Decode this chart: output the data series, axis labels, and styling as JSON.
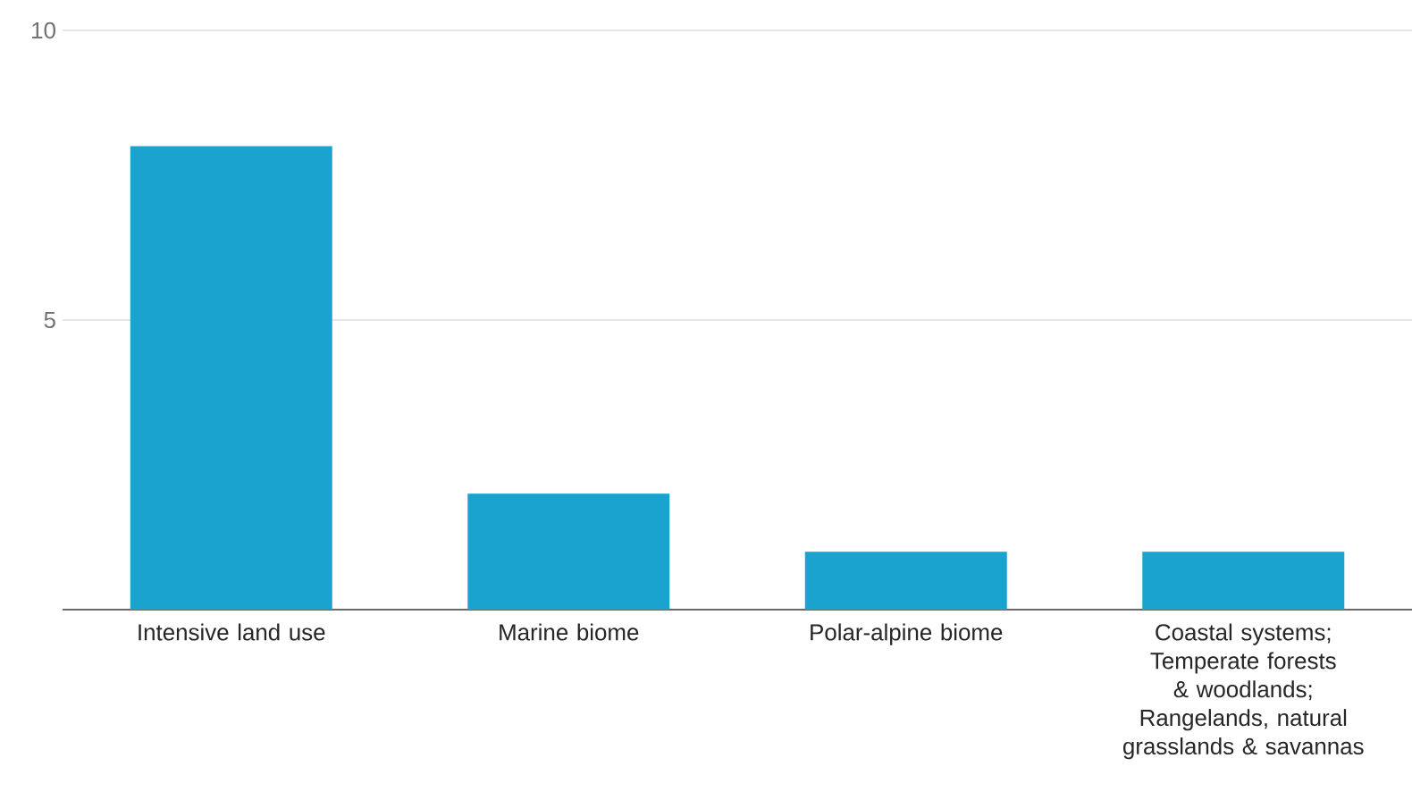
{
  "chart_data": {
    "type": "bar",
    "categories": [
      "Intensive land use",
      "Marine biome",
      "Polar-alpine biome",
      "Coastal systems; Temperate forests & woodlands; Rangelands, natural grasslands & savannas"
    ],
    "values": [
      8,
      2,
      1,
      1
    ],
    "color": "#1ba3d0",
    "ylim": [
      0,
      10
    ],
    "yticks": [
      {
        "value": 0,
        "label": null
      },
      5,
      10
    ],
    "grid": "y"
  }
}
